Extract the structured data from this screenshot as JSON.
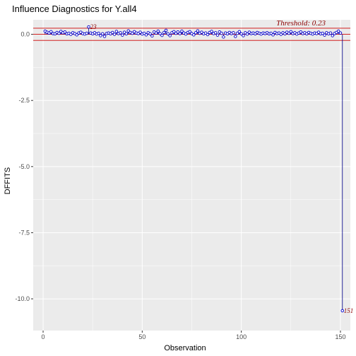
{
  "chart_data": {
    "type": "scatter",
    "title": "Influence Diagnostics for Y.all4",
    "xlabel": "Observation",
    "ylabel": "DFFITS",
    "xlim": [
      -5,
      155
    ],
    "ylim": [
      -11.2,
      0.55
    ],
    "x_ticks": [
      0,
      50,
      100,
      150
    ],
    "x_tick_labels": [
      "0",
      "50",
      "100",
      "150"
    ],
    "y_ticks": [
      0,
      -2.5,
      -5,
      -7.5,
      -10
    ],
    "y_tick_labels": [
      "0.0",
      "-2.5",
      "-5.0",
      "-7.5",
      "-10.0"
    ],
    "grid": true,
    "threshold": 0.23,
    "threshold_label": "Threshold: 0.23",
    "colors": {
      "panel_bg": "#ebebeb",
      "grid": "#ffffff",
      "points": "#0000cc",
      "threshold": "#cc0000",
      "label": "#8b0000"
    },
    "labeled_points": [
      {
        "x": 23,
        "y": 0.28,
        "label": "23"
      },
      {
        "x": 151,
        "y": -10.45,
        "label": "151"
      }
    ],
    "y_values": [
      0.12,
      0.08,
      0.05,
      0.1,
      0.03,
      0.02,
      0.07,
      0.04,
      0.11,
      0.06,
      0.09,
      0.02,
      0.04,
      0.0,
      0.06,
      0.03,
      -0.02,
      0.05,
      0.08,
      0.03,
      0.01,
      0.04,
      0.28,
      0.05,
      0.02,
      0.06,
      0.01,
      0.04,
      -0.05,
      0.02,
      -0.08,
      0.03,
      0.05,
      0.02,
      0.07,
      0.0,
      0.11,
      0.03,
      0.06,
      -0.03,
      0.08,
      0.02,
      0.13,
      0.07,
      0.04,
      0.1,
      0.05,
      0.03,
      0.08,
      0.01,
      0.04,
      -0.02,
      0.06,
      0.02,
      -0.06,
      0.09,
      0.05,
      0.12,
      0.03,
      -0.04,
      0.07,
      0.15,
      0.02,
      -0.05,
      0.06,
      0.1,
      0.04,
      0.09,
      0.03,
      0.12,
      0.05,
      0.01,
      0.07,
      0.1,
      0.03,
      -0.02,
      0.06,
      0.13,
      0.04,
      0.08,
      0.02,
      0.05,
      -0.01,
      0.07,
      0.11,
      0.03,
      0.06,
      -0.03,
      0.09,
      0.04,
      -0.1,
      0.05,
      0.02,
      0.07,
      0.03,
      0.06,
      -0.08,
      0.04,
      0.1,
      0.02,
      -0.05,
      0.06,
      0.01,
      0.08,
      0.03,
      0.05,
      0.02,
      0.07,
      0.04,
      0.01,
      0.05,
      0.03,
      0.06,
      0.02,
      0.04,
      -0.02,
      0.07,
      0.03,
      0.05,
      0.0,
      0.06,
      0.02,
      0.08,
      0.04,
      0.1,
      0.03,
      0.06,
      0.01,
      0.05,
      0.09,
      0.03,
      0.06,
      0.02,
      0.07,
      0.04,
      0.01,
      0.05,
      0.03,
      0.08,
      0.02,
      0.04,
      -0.03,
      0.06,
      0.02,
      0.05,
      -0.05,
      0.03,
      0.07,
      0.12,
      0.05,
      -10.45
    ]
  }
}
